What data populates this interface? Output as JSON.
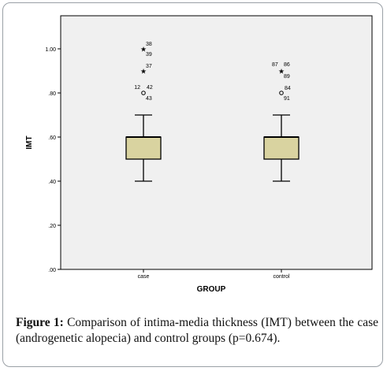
{
  "chart_data": {
    "type": "boxplot",
    "xlabel": "GROUP",
    "ylabel": "IMT",
    "categories": [
      "case",
      "control"
    ],
    "ylim": [
      0,
      1.1
    ],
    "yticks": [
      0,
      0.2,
      0.4,
      0.6,
      0.8,
      1.0
    ],
    "ytick_labels": [
      ".00",
      ".20",
      ".40",
      ".60",
      ".80",
      "1.00"
    ],
    "grid": false,
    "box_color": "#d9d3a0",
    "plot_bg": "#f0f0f0",
    "boxes": [
      {
        "category": "case",
        "whisker_low": 0.4,
        "q1": 0.5,
        "median": 0.6,
        "q3": 0.6,
        "whisker_high": 0.7,
        "outliers": [
          {
            "value": 1.0,
            "marker": "star",
            "label": "38"
          },
          {
            "value": 1.0,
            "marker": "star",
            "label": "39"
          },
          {
            "value": 0.9,
            "marker": "star",
            "label": "37"
          },
          {
            "value": 0.8,
            "marker": "circle",
            "label": "12"
          },
          {
            "value": 0.8,
            "marker": "circle",
            "label": "42"
          },
          {
            "value": 0.8,
            "marker": "circle",
            "label": "43"
          }
        ]
      },
      {
        "category": "control",
        "whisker_low": 0.4,
        "q1": 0.5,
        "median": 0.6,
        "q3": 0.6,
        "whisker_high": 0.7,
        "outliers": [
          {
            "value": 0.9,
            "marker": "star",
            "label": "87"
          },
          {
            "value": 0.9,
            "marker": "star",
            "label": "86"
          },
          {
            "value": 0.9,
            "marker": "star",
            "label": "89"
          },
          {
            "value": 0.8,
            "marker": "circle",
            "label": "84"
          },
          {
            "value": 0.8,
            "marker": "circle",
            "label": "91"
          }
        ]
      }
    ]
  },
  "caption": {
    "label": "Figure 1:",
    "text": "Comparison of intima-media thickness (IMT) between the case (androgenetic alopecia) and control groups (p=0.674)."
  }
}
